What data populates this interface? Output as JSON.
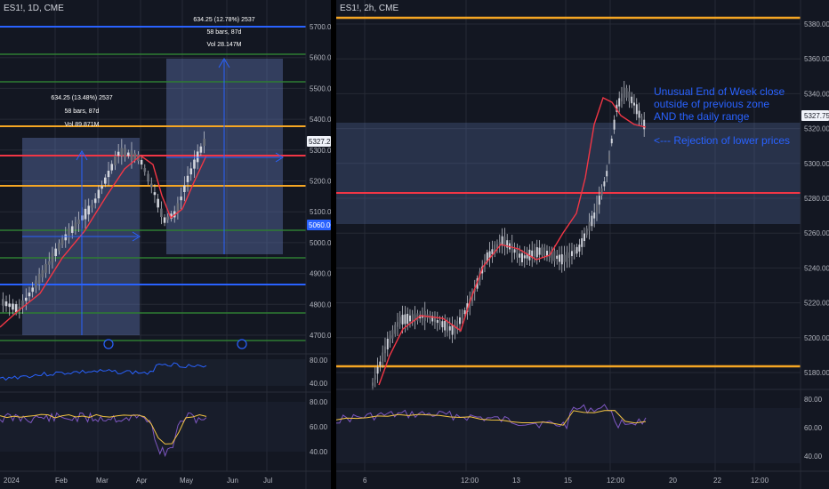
{
  "colors": {
    "bg": "#131722",
    "grid": "#262a35",
    "orange": "#f5a623",
    "red": "#f23645",
    "green": "#2e7d32",
    "blue": "#2962ff",
    "zone": "#5a6fa8",
    "candle": "#d1d4dc",
    "rsi": "#7e57c2",
    "rsi_ma": "#f5c542",
    "pricebox": "#f0f3fa",
    "bluebox": "#2962ff"
  },
  "left_chart": {
    "symbol": "ES1!, 1D, CME",
    "price_labels": [
      "5700.00",
      "5600.00",
      "5500.00",
      "5400.00",
      "5300.00",
      "5200.00",
      "5100.00",
      "5000.00",
      "4900.00",
      "4800.00",
      "4700.00"
    ],
    "current_price": "5327.25",
    "marker_price": "5060.00",
    "x_labels": [
      "2024",
      "Feb",
      "Mar",
      "Apr",
      "May",
      "Jun",
      "Jul"
    ],
    "measure_1": {
      "line1": "634.25 (13.48%) 2537",
      "line2": "58 bars, 87d",
      "line3": "Vol 89.871M"
    },
    "measure_2": {
      "line1": "634.25 (12.78%) 2537",
      "line2": "58 bars, 87d",
      "line3": "Vol 28.147M"
    },
    "osc1_labels": [
      "80.00",
      "40.00"
    ],
    "osc2_labels": [
      "80.00",
      "60.00",
      "40.00"
    ]
  },
  "right_chart": {
    "symbol": "ES1!, 2h, CME",
    "price_labels": [
      "5380.00",
      "5360.00",
      "5340.00",
      "5320.00",
      "5300.00",
      "5280.00",
      "5260.00",
      "5240.00",
      "5220.00",
      "5200.00",
      "5180.00"
    ],
    "current_price": "5327.75",
    "annotation_lines": [
      "Unusual End of Week close",
      "outside of previous zone",
      "AND the daily range"
    ],
    "rejection_note": "<--- Rejection of lower prices",
    "x_labels": [
      "6",
      "12:00",
      "13",
      "15",
      "12:00",
      "20",
      "22",
      "12:00"
    ],
    "osc_labels": [
      "80.00",
      "60.00",
      "40.00"
    ]
  }
}
